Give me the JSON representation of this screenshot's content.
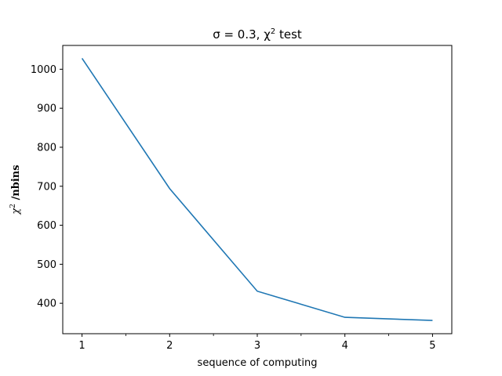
{
  "chart_data": {
    "type": "line",
    "title_text": "σ = 0.3, χ",
    "title_superscript": "2",
    "title_suffix": " test",
    "xlabel": "sequence of computing",
    "ylabel_symbol": "χ",
    "ylabel_superscript": "2",
    "ylabel_suffix": " /nbins",
    "x": [
      1,
      2,
      3,
      4,
      5
    ],
    "series": [
      {
        "values": [
          1028,
          694,
          431,
          364,
          356
        ],
        "color": "#1f77b4"
      }
    ],
    "xlim": [
      0.78,
      5.22
    ],
    "ylim": [
      322,
      1061
    ],
    "xticks_major": [
      1,
      2,
      3,
      4,
      5
    ],
    "xticks_minor": [
      1.5,
      2.5,
      3.5,
      4.5
    ],
    "yticks": [
      400,
      500,
      600,
      700,
      800,
      900,
      1000
    ],
    "grid": false
  }
}
